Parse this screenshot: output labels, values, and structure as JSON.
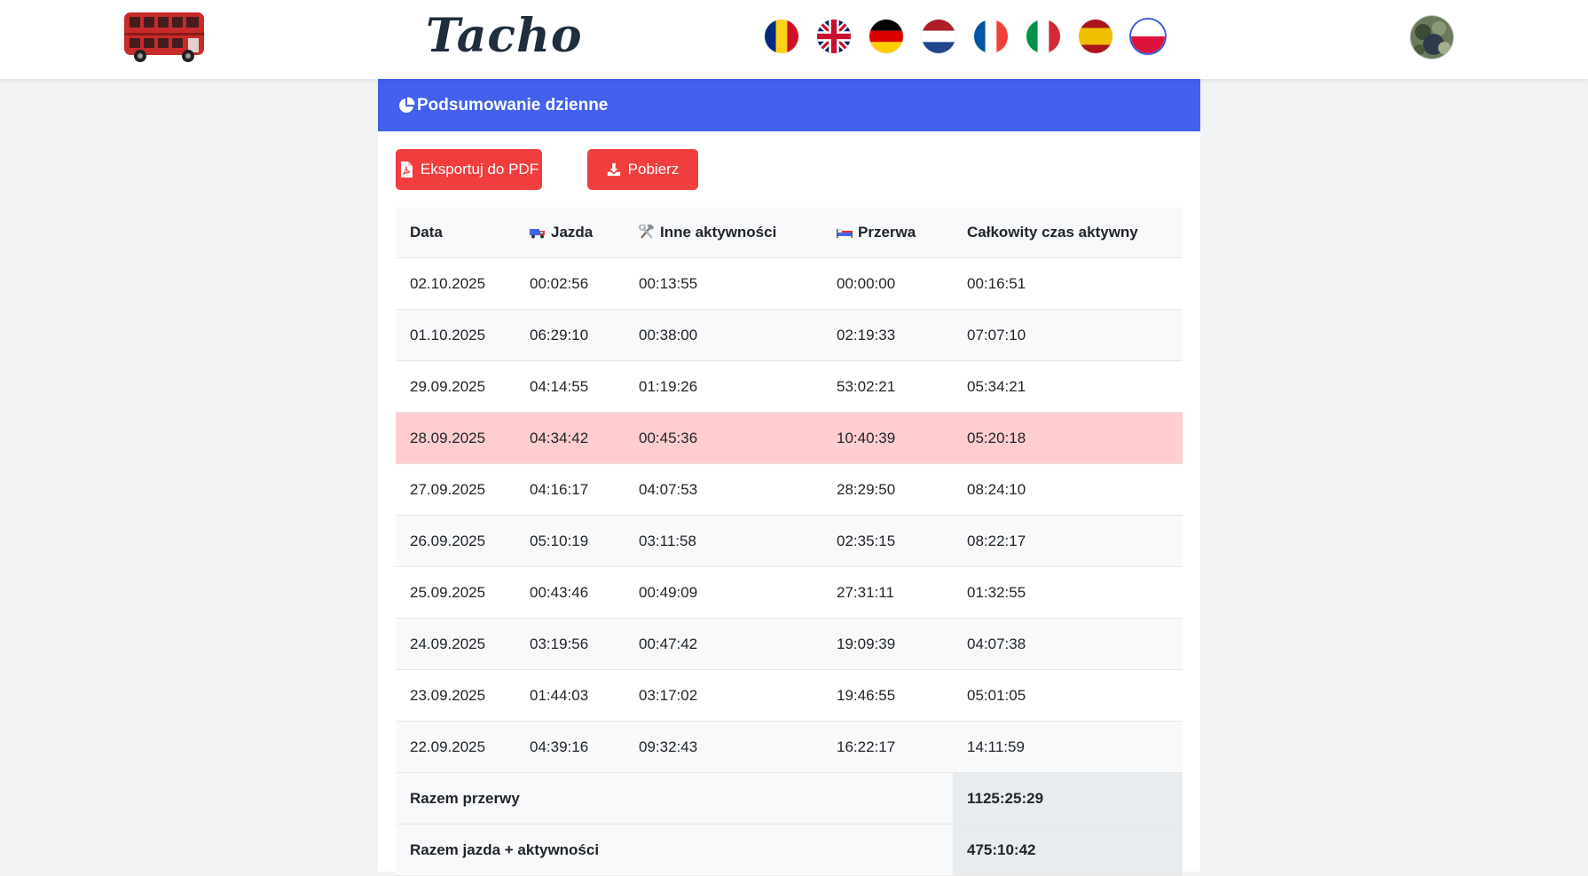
{
  "header": {
    "brand": "Tacho",
    "logo": "red-double-decker-bus-logo",
    "flags": [
      {
        "name": "flag-romania-icon",
        "colors": [
          "#002B7F",
          "#FCD116",
          "#CE1126"
        ]
      },
      {
        "name": "flag-uk-icon",
        "colors": [
          "#012169",
          "#FFFFFF",
          "#C8102E"
        ]
      },
      {
        "name": "flag-germany-icon",
        "colors": [
          "#000000",
          "#DD0000",
          "#FFCE00"
        ]
      },
      {
        "name": "flag-netherlands-icon",
        "colors": [
          "#AE1C28",
          "#FFFFFF",
          "#21468B"
        ]
      },
      {
        "name": "flag-france-icon",
        "colors": [
          "#0055A4",
          "#FFFFFF",
          "#EF4135"
        ]
      },
      {
        "name": "flag-italy-icon",
        "colors": [
          "#009246",
          "#FFFFFF",
          "#CE2B37"
        ]
      },
      {
        "name": "flag-spain-icon",
        "colors": [
          "#AA151B",
          "#F1BF00",
          "#AA151B"
        ]
      },
      {
        "name": "flag-poland-icon",
        "colors": [
          "#FFFFFF",
          "#DC143C"
        ]
      }
    ],
    "active_language": "flag-poland-icon",
    "avatar": "user-avatar"
  },
  "card": {
    "title": "Podsumowanie dzienne",
    "title_icon": "pie-chart-icon",
    "accent_color": "#4361ee"
  },
  "buttons": {
    "export_pdf": "Eksportuj do PDF",
    "export_pdf_icon": "file-pdf-icon",
    "download": "Pobierz",
    "download_icon": "download-icon",
    "color": "#f03e3e"
  },
  "table": {
    "headers": {
      "date": "Data",
      "driving": "Jazda",
      "driving_icon": "truck-emoji-icon",
      "other": "Inne aktywności",
      "other_icon": "hammer-wrench-emoji-icon",
      "break": "Przerwa",
      "break_icon": "bed-emoji-icon",
      "total": "Całkowity czas aktywny"
    },
    "rows": [
      {
        "date": "02.10.2025",
        "driving": "00:02:56",
        "other": "00:13:55",
        "break": "00:00:00",
        "total": "00:16:51"
      },
      {
        "date": "01.10.2025",
        "driving": "06:29:10",
        "other": "00:38:00",
        "break": "02:19:33",
        "total": "07:07:10"
      },
      {
        "date": "29.09.2025",
        "driving": "04:14:55",
        "other": "01:19:26",
        "break": "53:02:21",
        "total": "05:34:21"
      },
      {
        "date": "28.09.2025",
        "driving": "04:34:42",
        "other": "00:45:36",
        "break": "10:40:39",
        "total": "05:20:18"
      },
      {
        "date": "27.09.2025",
        "driving": "04:16:17",
        "other": "04:07:53",
        "break": "28:29:50",
        "total": "08:24:10"
      },
      {
        "date": "26.09.2025",
        "driving": "05:10:19",
        "other": "03:11:58",
        "break": "02:35:15",
        "total": "08:22:17"
      },
      {
        "date": "25.09.2025",
        "driving": "00:43:46",
        "other": "00:49:09",
        "break": "27:31:11",
        "total": "01:32:55"
      },
      {
        "date": "24.09.2025",
        "driving": "03:19:56",
        "other": "00:47:42",
        "break": "19:09:39",
        "total": "04:07:38"
      },
      {
        "date": "23.09.2025",
        "driving": "01:44:03",
        "other": "03:17:02",
        "break": "19:46:55",
        "total": "05:01:05"
      },
      {
        "date": "22.09.2025",
        "driving": "04:39:16",
        "other": "09:32:43",
        "break": "16:22:17",
        "total": "14:11:59"
      }
    ],
    "highlight_color": "#ffcdd0",
    "totals": {
      "breaks_label": "Razem przerwy",
      "breaks_value": "1125:25:29",
      "active_label": "Razem jazda + aktywności",
      "active_value": "475:10:42"
    }
  }
}
